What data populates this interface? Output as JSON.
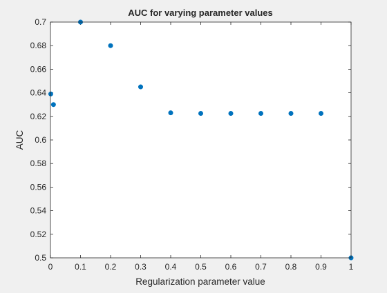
{
  "chart_data": {
    "type": "scatter",
    "title": "AUC for varying parameter values",
    "xlabel": "Regularization parameter value",
    "ylabel": "AUC",
    "xlim": [
      0,
      1
    ],
    "ylim": [
      0.5,
      0.7
    ],
    "x_ticks": [
      "0",
      "0.1",
      "0.2",
      "0.3",
      "0.4",
      "0.5",
      "0.6",
      "0.7",
      "0.8",
      "0.9",
      "1"
    ],
    "y_ticks": [
      "0.5",
      "0.52",
      "0.54",
      "0.56",
      "0.58",
      "0.6",
      "0.62",
      "0.64",
      "0.66",
      "0.68",
      "0.7"
    ],
    "grid": false,
    "marker_color": "#0072bd",
    "points": [
      {
        "x": 0.001,
        "y": 0.639
      },
      {
        "x": 0.01,
        "y": 0.63
      },
      {
        "x": 0.1,
        "y": 0.7
      },
      {
        "x": 0.2,
        "y": 0.68
      },
      {
        "x": 0.3,
        "y": 0.645
      },
      {
        "x": 0.4,
        "y": 0.623
      },
      {
        "x": 0.5,
        "y": 0.6225
      },
      {
        "x": 0.6,
        "y": 0.6225
      },
      {
        "x": 0.7,
        "y": 0.6225
      },
      {
        "x": 0.8,
        "y": 0.6225
      },
      {
        "x": 0.9,
        "y": 0.6225
      },
      {
        "x": 1.0,
        "y": 0.5
      }
    ]
  }
}
